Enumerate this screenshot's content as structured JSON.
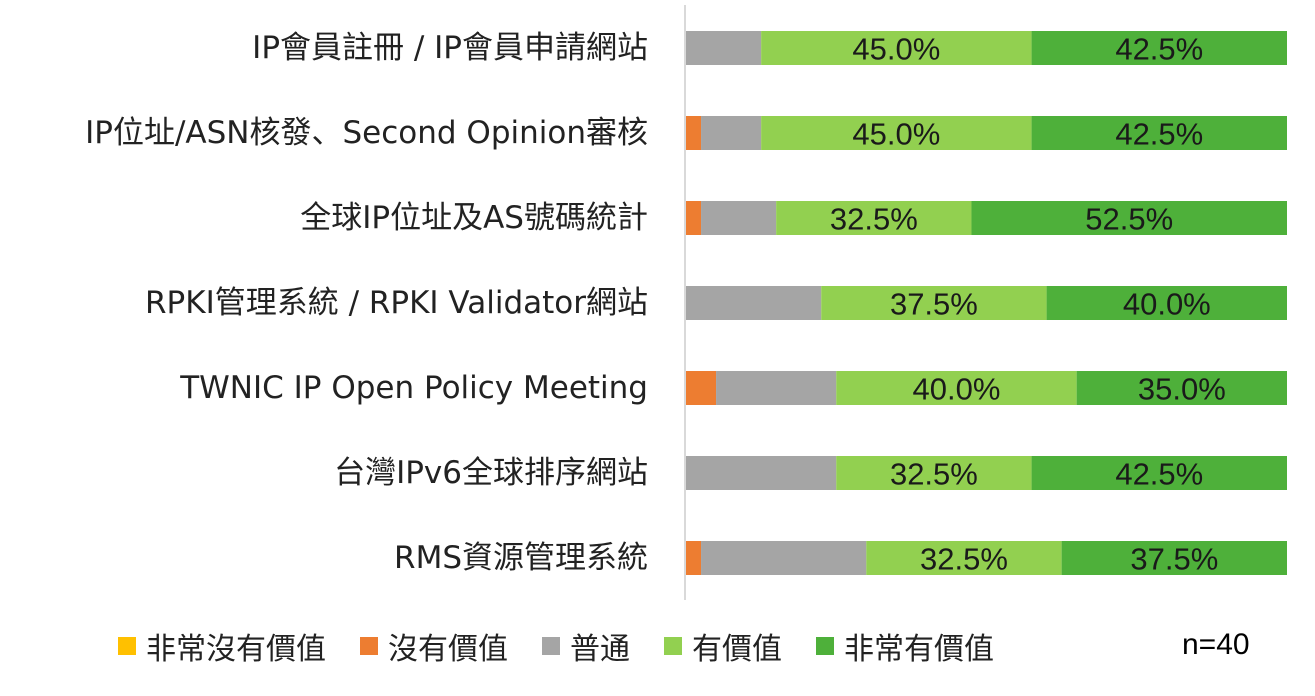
{
  "chart_data": {
    "type": "bar",
    "orientation": "horizontal",
    "stacked": true,
    "xlim": [
      0,
      100
    ],
    "grid": false,
    "legend_position": "bottom",
    "categories": [
      "IP會員註冊 / IP會員申請網站",
      "IP位址/ASN核發、Second Opinion審核",
      "全球IP位址及AS號碼統計",
      "RPKI管理系統 / RPKI Validator網站",
      "TWNIC IP Open Policy Meeting",
      "台灣IPv6全球排序網站",
      "RMS資源管理系統"
    ],
    "series": [
      {
        "name": "非常沒有價值",
        "color": "#FFC000",
        "values": [
          0,
          0,
          0,
          0,
          0,
          0,
          0
        ]
      },
      {
        "name": "沒有價值",
        "color": "#ED7D31",
        "values": [
          0,
          2.5,
          2.5,
          0,
          5.0,
          0,
          2.5
        ]
      },
      {
        "name": "普通",
        "color": "#A5A5A5",
        "values": [
          12.5,
          10.0,
          12.5,
          22.5,
          20.0,
          25.0,
          27.5
        ]
      },
      {
        "name": "有價值",
        "color": "#92D050",
        "values": [
          45.0,
          45.0,
          32.5,
          37.5,
          40.0,
          32.5,
          32.5
        ]
      },
      {
        "name": "非常有價值",
        "color": "#4EB03A",
        "values": [
          42.5,
          42.5,
          52.5,
          40.0,
          35.0,
          42.5,
          37.5
        ]
      }
    ],
    "data_labels": [
      [
        "",
        "",
        "",
        "45.0%",
        "42.5%"
      ],
      [
        "",
        "",
        "",
        "45.0%",
        "42.5%"
      ],
      [
        "",
        "",
        "",
        "32.5%",
        "52.5%"
      ],
      [
        "",
        "",
        "",
        "37.5%",
        "40.0%"
      ],
      [
        "",
        "",
        "",
        "40.0%",
        "35.0%"
      ],
      [
        "",
        "",
        "",
        "32.5%",
        "42.5%"
      ],
      [
        "",
        "",
        "",
        "32.5%",
        "37.5%"
      ]
    ],
    "annotation": "n=40"
  }
}
